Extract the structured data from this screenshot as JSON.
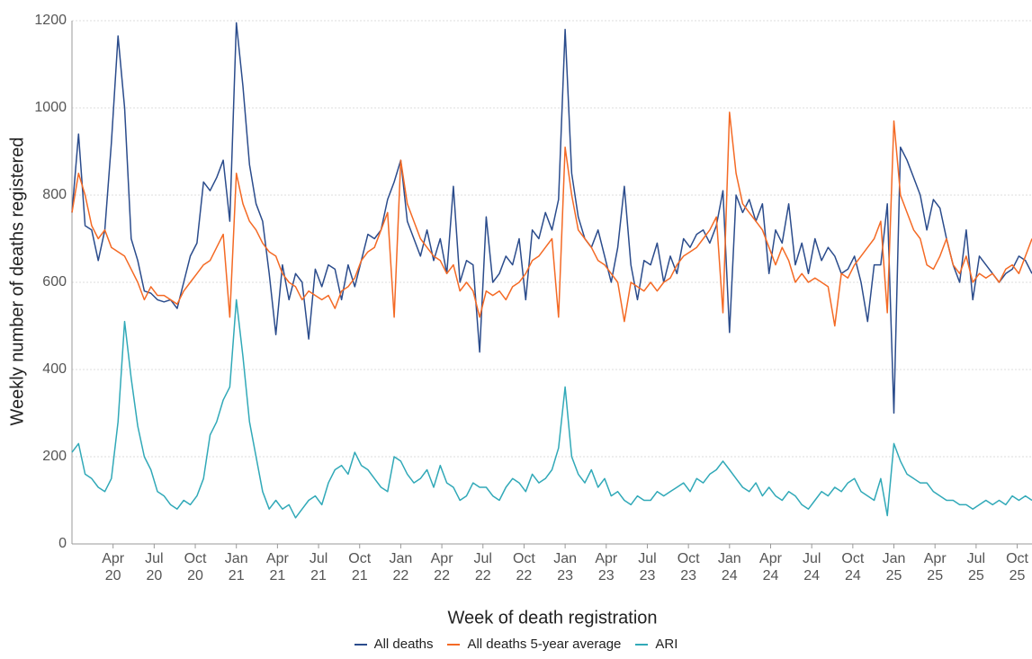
{
  "chart_data": {
    "type": "line",
    "xlabel": "Week of death registration",
    "ylabel": "Weekly number of deaths registered",
    "xlim": [
      2020.0,
      2025.84
    ],
    "ylim": [
      0,
      1200
    ],
    "yticks": [
      0,
      200,
      400,
      600,
      800,
      1000,
      1200
    ],
    "xticks": [
      {
        "value": 2020.25,
        "label": "Apr 20"
      },
      {
        "value": 2020.5,
        "label": "Jul 20"
      },
      {
        "value": 2020.75,
        "label": "Oct 20"
      },
      {
        "value": 2021.0,
        "label": "Jan 21"
      },
      {
        "value": 2021.25,
        "label": "Apr 21"
      },
      {
        "value": 2021.5,
        "label": "Jul 21"
      },
      {
        "value": 2021.75,
        "label": "Oct 21"
      },
      {
        "value": 2022.0,
        "label": "Jan 22"
      },
      {
        "value": 2022.25,
        "label": "Apr 22"
      },
      {
        "value": 2022.5,
        "label": "Jul 22"
      },
      {
        "value": 2022.75,
        "label": "Oct 22"
      },
      {
        "value": 2023.0,
        "label": "Jan 23"
      },
      {
        "value": 2023.25,
        "label": "Apr 23"
      },
      {
        "value": 2023.5,
        "label": "Jul 23"
      },
      {
        "value": 2023.75,
        "label": "Oct 23"
      },
      {
        "value": 2024.0,
        "label": "Jan 24"
      },
      {
        "value": 2024.25,
        "label": "Apr 24"
      },
      {
        "value": 2024.5,
        "label": "Jul 24"
      },
      {
        "value": 2024.75,
        "label": "Oct 24"
      },
      {
        "value": 2025.0,
        "label": "Jan 25"
      },
      {
        "value": 2025.25,
        "label": "Apr 25"
      },
      {
        "value": 2025.5,
        "label": "Jul 25"
      },
      {
        "value": 2025.75,
        "label": "Oct 25"
      }
    ],
    "grid": true,
    "x": [
      2020.0,
      2020.04,
      2020.08,
      2020.12,
      2020.16,
      2020.2,
      2020.24,
      2020.28,
      2020.32,
      2020.36,
      2020.4,
      2020.44,
      2020.48,
      2020.52,
      2020.56,
      2020.6,
      2020.64,
      2020.68,
      2020.72,
      2020.76,
      2020.8,
      2020.84,
      2020.88,
      2020.92,
      2020.96,
      2021.0,
      2021.04,
      2021.08,
      2021.12,
      2021.16,
      2021.2,
      2021.24,
      2021.28,
      2021.32,
      2021.36,
      2021.4,
      2021.44,
      2021.48,
      2021.52,
      2021.56,
      2021.6,
      2021.64,
      2021.68,
      2021.72,
      2021.76,
      2021.8,
      2021.84,
      2021.88,
      2021.92,
      2021.96,
      2022.0,
      2022.04,
      2022.08,
      2022.12,
      2022.16,
      2022.2,
      2022.24,
      2022.28,
      2022.32,
      2022.36,
      2022.4,
      2022.44,
      2022.48,
      2022.52,
      2022.56,
      2022.6,
      2022.64,
      2022.68,
      2022.72,
      2022.76,
      2022.8,
      2022.84,
      2022.88,
      2022.92,
      2022.96,
      2023.0,
      2023.04,
      2023.08,
      2023.12,
      2023.16,
      2023.2,
      2023.24,
      2023.28,
      2023.32,
      2023.36,
      2023.4,
      2023.44,
      2023.48,
      2023.52,
      2023.56,
      2023.6,
      2023.64,
      2023.68,
      2023.72,
      2023.76,
      2023.8,
      2023.84,
      2023.88,
      2023.92,
      2023.96,
      2024.0,
      2024.04,
      2024.08,
      2024.12,
      2024.16,
      2024.2,
      2024.24,
      2024.28,
      2024.32,
      2024.36,
      2024.4,
      2024.44,
      2024.48,
      2024.52,
      2024.56,
      2024.6,
      2024.64,
      2024.68,
      2024.72,
      2024.76,
      2024.8,
      2024.84,
      2024.88,
      2024.92,
      2024.96,
      2025.0,
      2025.04,
      2025.08,
      2025.12,
      2025.16,
      2025.2,
      2025.24,
      2025.28,
      2025.32,
      2025.36,
      2025.4,
      2025.44,
      2025.48,
      2025.52,
      2025.56,
      2025.6,
      2025.64,
      2025.68,
      2025.72,
      2025.76,
      2025.8,
      2025.84
    ],
    "series": [
      {
        "name": "All deaths",
        "color": "#2b4c8c",
        "values": [
          760,
          940,
          730,
          720,
          650,
          720,
          920,
          1165,
          1000,
          700,
          650,
          580,
          575,
          560,
          555,
          560,
          540,
          600,
          660,
          690,
          830,
          810,
          840,
          880,
          740,
          1195,
          1050,
          870,
          780,
          740,
          620,
          480,
          640,
          560,
          620,
          600,
          470,
          630,
          590,
          640,
          630,
          560,
          640,
          590,
          650,
          710,
          700,
          720,
          790,
          830,
          880,
          740,
          700,
          660,
          720,
          650,
          700,
          620,
          820,
          600,
          650,
          640,
          440,
          750,
          600,
          620,
          660,
          640,
          700,
          560,
          720,
          700,
          760,
          720,
          790,
          1180,
          850,
          750,
          700,
          680,
          720,
          660,
          600,
          680,
          820,
          640,
          560,
          650,
          640,
          690,
          600,
          660,
          620,
          700,
          680,
          710,
          720,
          690,
          730,
          810,
          485,
          800,
          760,
          790,
          740,
          780,
          620,
          720,
          690,
          780,
          640,
          690,
          620,
          700,
          650,
          680,
          660,
          620,
          630,
          660,
          600,
          510,
          640,
          640,
          780,
          300,
          910,
          880,
          840,
          800,
          720,
          790,
          770,
          700,
          640,
          600,
          720,
          560,
          660,
          640,
          620,
          600,
          620,
          630,
          660,
          650,
          620
        ]
      },
      {
        "name": "All deaths 5-year average",
        "color": "#f46a25",
        "values": [
          760,
          850,
          800,
          730,
          700,
          720,
          680,
          670,
          660,
          630,
          600,
          560,
          590,
          570,
          570,
          560,
          550,
          580,
          600,
          620,
          640,
          650,
          680,
          710,
          520,
          850,
          780,
          740,
          720,
          690,
          670,
          660,
          620,
          600,
          590,
          560,
          580,
          570,
          560,
          570,
          540,
          580,
          590,
          610,
          650,
          670,
          680,
          720,
          760,
          520,
          880,
          780,
          740,
          700,
          680,
          660,
          650,
          620,
          640,
          580,
          600,
          580,
          520,
          580,
          570,
          580,
          560,
          590,
          600,
          620,
          650,
          660,
          680,
          700,
          520,
          910,
          800,
          720,
          700,
          680,
          650,
          640,
          620,
          600,
          510,
          600,
          590,
          580,
          600,
          580,
          600,
          610,
          640,
          660,
          670,
          680,
          700,
          720,
          750,
          530,
          990,
          850,
          780,
          760,
          740,
          720,
          680,
          640,
          680,
          650,
          600,
          620,
          600,
          610,
          600,
          590,
          500,
          620,
          610,
          640,
          660,
          680,
          700,
          740,
          530,
          970,
          800,
          760,
          720,
          700,
          640,
          630,
          660,
          700,
          640,
          620,
          660,
          600,
          620,
          610,
          620,
          600,
          630,
          640,
          620,
          660,
          700
        ]
      },
      {
        "name": "ARI",
        "color": "#31a9b8",
        "values": [
          210,
          230,
          160,
          150,
          130,
          120,
          150,
          280,
          510,
          380,
          270,
          200,
          170,
          120,
          110,
          90,
          80,
          100,
          90,
          110,
          150,
          250,
          280,
          330,
          360,
          560,
          430,
          280,
          200,
          120,
          80,
          100,
          80,
          90,
          60,
          80,
          100,
          110,
          90,
          140,
          170,
          180,
          160,
          210,
          180,
          170,
          150,
          130,
          120,
          200,
          190,
          160,
          140,
          150,
          170,
          130,
          180,
          140,
          130,
          100,
          110,
          140,
          130,
          130,
          110,
          100,
          130,
          150,
          140,
          120,
          160,
          140,
          150,
          170,
          220,
          360,
          200,
          160,
          140,
          170,
          130,
          150,
          110,
          120,
          100,
          90,
          110,
          100,
          100,
          120,
          110,
          120,
          130,
          140,
          120,
          150,
          140,
          160,
          170,
          190,
          170,
          150,
          130,
          120,
          140,
          110,
          130,
          110,
          100,
          120,
          110,
          90,
          80,
          100,
          120,
          110,
          130,
          120,
          140,
          150,
          120,
          110,
          100,
          150,
          65,
          230,
          190,
          160,
          150,
          140,
          140,
          120,
          110,
          100,
          100,
          90,
          90,
          80,
          90,
          100,
          90,
          100,
          90,
          110,
          100,
          110,
          100
        ]
      }
    ]
  }
}
